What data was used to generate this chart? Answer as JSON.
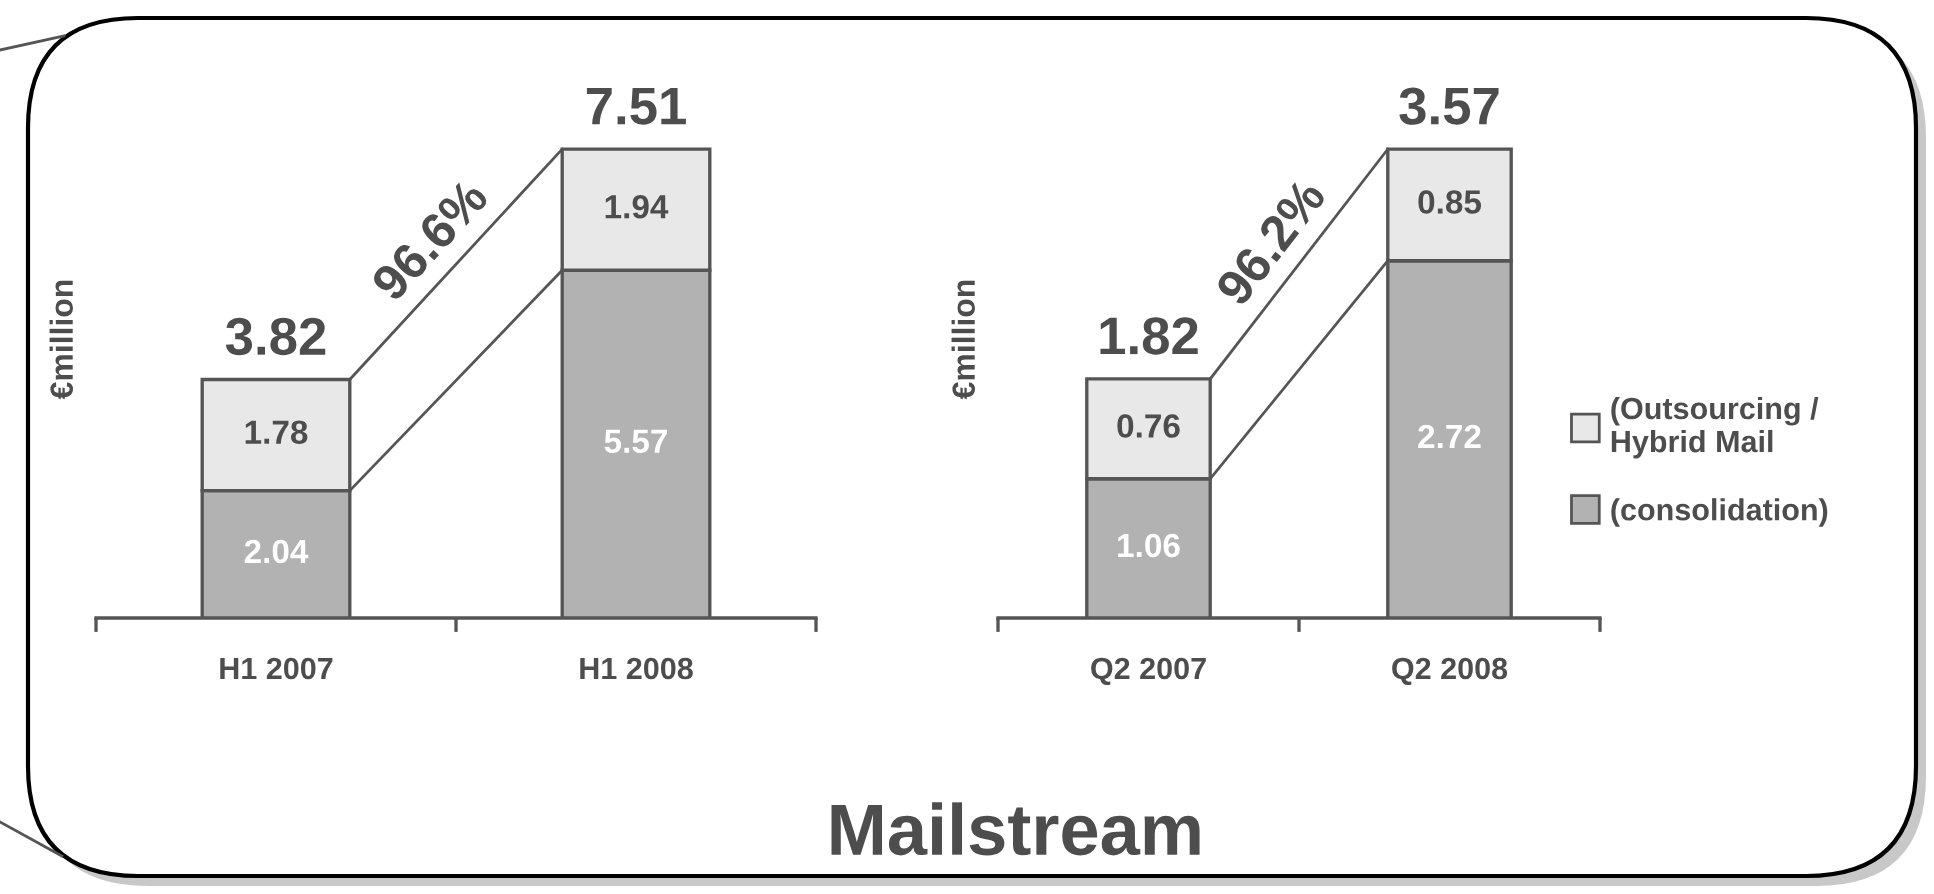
{
  "chart_data": [
    {
      "type": "bar",
      "ylabel": "€million",
      "categories": [
        "H1 2007",
        "H1 2008"
      ],
      "stacked": true,
      "tick_labels": "x",
      "data_labels": true,
      "series": [
        {
          "color": "#b2b2b2",
          "values": [
            2.04,
            5.57
          ]
        },
        {
          "color": "#e8e8e8",
          "values": [
            1.78,
            1.94
          ]
        }
      ],
      "totals": [
        "3.82",
        "7.51"
      ],
      "annotations": [
        "96.6%"
      ]
    },
    {
      "type": "bar",
      "title": "Mailstream",
      "ylabel": "€million",
      "categories": [
        "Q2 2007",
        "Q2 2008"
      ],
      "stacked": true,
      "tick_labels": "x",
      "data_labels": true,
      "legend": "right",
      "series": [
        {
          "name": "(consolidation)",
          "color": "#b2b2b2",
          "values": [
            1.06,
            2.72
          ]
        },
        {
          "name": "(Outsourcing /\nHybrid Mail",
          "color": "#e8e8e8",
          "values": [
            0.76,
            0.85
          ]
        }
      ],
      "totals": [
        "1.82",
        "3.57"
      ],
      "annotations": [
        "96.2%"
      ]
    }
  ]
}
